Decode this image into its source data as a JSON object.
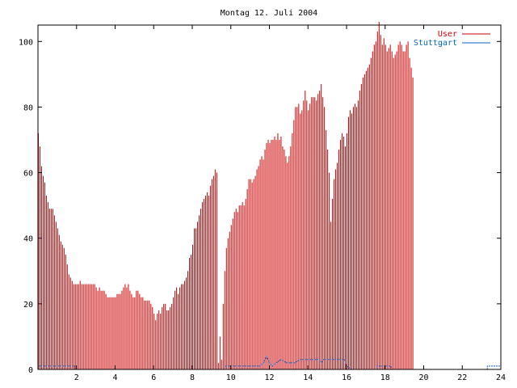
{
  "chart_data": {
    "type": "bar",
    "title": "Montag 12. Juli 2004",
    "xlabel": "",
    "ylabel": "",
    "xlim": [
      0,
      24
    ],
    "ylim": [
      0,
      105
    ],
    "x_ticks": [
      "2",
      "4",
      "6",
      "8",
      "10",
      "12",
      "14",
      "16",
      "18",
      "20",
      "22",
      "24"
    ],
    "y_ticks": [
      "0",
      "20",
      "40",
      "60",
      "80",
      "100"
    ],
    "grid": false,
    "legend_position": "top-right",
    "series": [
      {
        "name": "User",
        "color": "#cc0000",
        "samples_per_hour": 12,
        "values": [
          72,
          68,
          62,
          59,
          57,
          53,
          51,
          49,
          49,
          49,
          47,
          45,
          43,
          41,
          39,
          38,
          37,
          35,
          32,
          29,
          28,
          27,
          26,
          26,
          26,
          26,
          27,
          26,
          26,
          26,
          26,
          26,
          26,
          26,
          26,
          26,
          25,
          24,
          25,
          24,
          24,
          24,
          23,
          22,
          22,
          22,
          22,
          22,
          22,
          23,
          23,
          23,
          24,
          25,
          26,
          25,
          26,
          24,
          23,
          22,
          22,
          24,
          24,
          23,
          22,
          22,
          21,
          21,
          21,
          21,
          20,
          19,
          17,
          15,
          17,
          18,
          17,
          19,
          20,
          20,
          18,
          18,
          19,
          20,
          22,
          24,
          25,
          23,
          25,
          26,
          26,
          27,
          28,
          30,
          34,
          35,
          38,
          43,
          43,
          45,
          47,
          49,
          51,
          52,
          53,
          54,
          53,
          56,
          58,
          59,
          61,
          60,
          2,
          10,
          3,
          20,
          30,
          37,
          40,
          42,
          44,
          46,
          48,
          49,
          48,
          50,
          50,
          51,
          50,
          52,
          55,
          58,
          58,
          57,
          58,
          59,
          61,
          62,
          64,
          65,
          64,
          67,
          69,
          70,
          69,
          70,
          70,
          71,
          70,
          72,
          70,
          71,
          68,
          67,
          65,
          63,
          65,
          68,
          72,
          76,
          80,
          80,
          81,
          78,
          79,
          82,
          85,
          82,
          79,
          81,
          83,
          83,
          83,
          82,
          84,
          85,
          87,
          83,
          80,
          73,
          67,
          60,
          45,
          52,
          58,
          61,
          63,
          67,
          70,
          72,
          71,
          68,
          72,
          77,
          79,
          78,
          80,
          81,
          80,
          82,
          85,
          87,
          89,
          90,
          91,
          92,
          93,
          95,
          97,
          99,
          100,
          103,
          106,
          102,
          99,
          101,
          99,
          97,
          98,
          99,
          97,
          95,
          96,
          97,
          99,
          100,
          99,
          97,
          97,
          99,
          100,
          95,
          92,
          89
        ]
      },
      {
        "name": "Stuttgart",
        "color": "#0066cc",
        "values": [
          [
            0,
            1
          ],
          [
            1.9,
            1
          ],
          [
            1.9,
            0
          ],
          [
            9.7,
            0
          ],
          [
            9.7,
            1
          ],
          [
            11.5,
            1
          ],
          [
            11.7,
            2
          ],
          [
            11.85,
            4
          ],
          [
            12.0,
            2
          ],
          [
            12.15,
            1
          ],
          [
            12.35,
            2
          ],
          [
            12.6,
            3
          ],
          [
            12.9,
            2
          ],
          [
            13.3,
            2
          ],
          [
            13.6,
            3
          ],
          [
            14.6,
            3
          ],
          [
            14.7,
            2
          ],
          [
            14.8,
            3
          ],
          [
            15.9,
            3
          ],
          [
            16.0,
            1
          ],
          [
            16.3,
            0
          ],
          [
            17.6,
            0
          ],
          [
            17.6,
            1
          ],
          [
            18.3,
            1
          ],
          [
            18.3,
            0
          ],
          [
            23.3,
            0
          ],
          [
            23.3,
            1
          ],
          [
            24,
            1
          ]
        ]
      }
    ]
  }
}
